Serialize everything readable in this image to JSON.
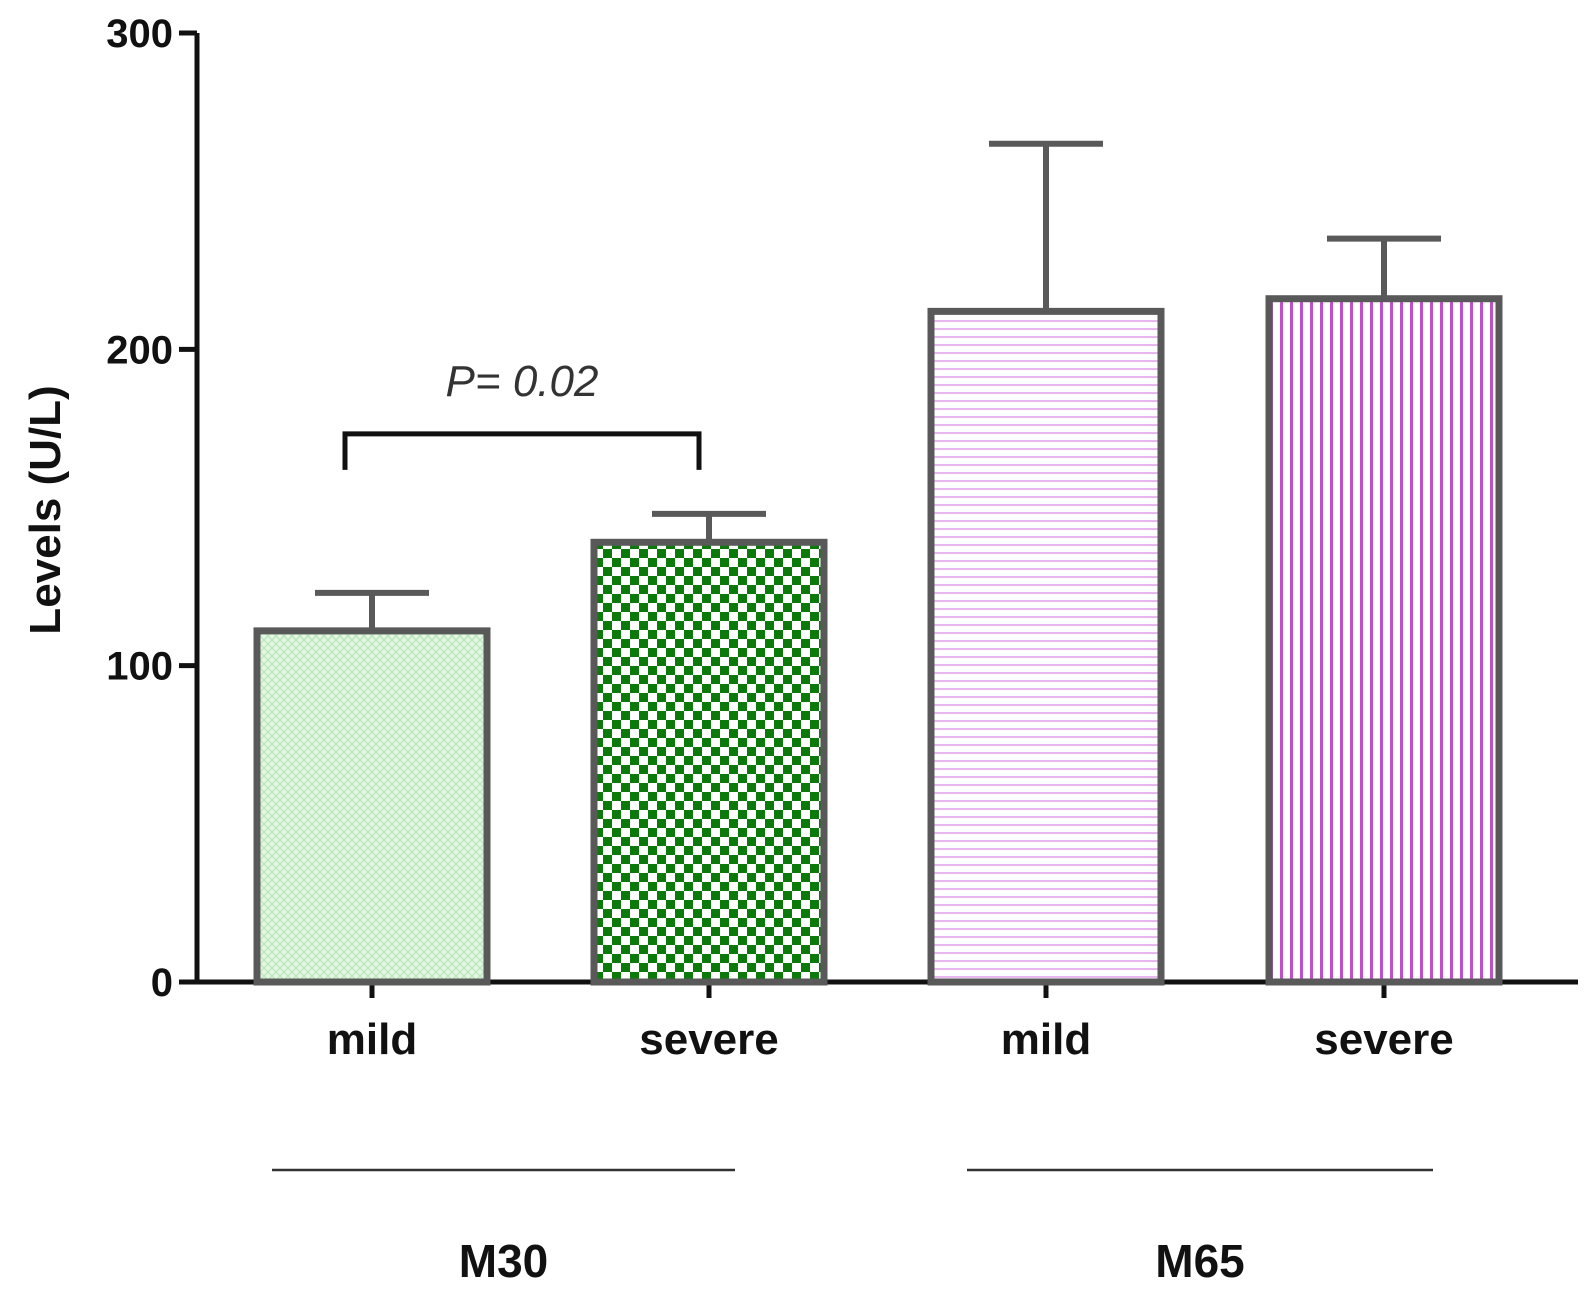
{
  "chart_data": {
    "type": "bar",
    "title": "",
    "xlabel": "",
    "ylabel": "Levels (U/L)",
    "ylim": [
      0,
      300
    ],
    "yticks": [
      0,
      100,
      200,
      300
    ],
    "ytick_labels": [
      "0",
      "100",
      "200",
      "300"
    ],
    "grid": false,
    "bars": [
      {
        "group": "M30",
        "category": "mild",
        "value": 111,
        "error": 12,
        "pattern": "light-green-crosshatch"
      },
      {
        "group": "M30",
        "category": "severe",
        "value": 139,
        "error": 9,
        "pattern": "green-checker"
      },
      {
        "group": "M65",
        "category": "mild",
        "value": 212,
        "error": 53,
        "pattern": "violet-horizontal-stripes"
      },
      {
        "group": "M65",
        "category": "severe",
        "value": 216,
        "error": 19,
        "pattern": "violet-vertical-stripes"
      }
    ],
    "groups": [
      "M30",
      "M65"
    ],
    "annotations": [
      {
        "text": "P= 0.02",
        "between": [
          0,
          1
        ],
        "bracket_value": 172
      }
    ]
  },
  "colors": {
    "axis": "#111111",
    "bar_outline": "#595959",
    "mild_m30_fill": "#e4f7e4",
    "mild_m30_hatch": "#b9e6b9",
    "severe_m30_a": "#0b7a0b",
    "severe_m30_b": "#ffffff",
    "violet_light": "#e9b6ef",
    "violet_strong": "#c04fcc"
  }
}
